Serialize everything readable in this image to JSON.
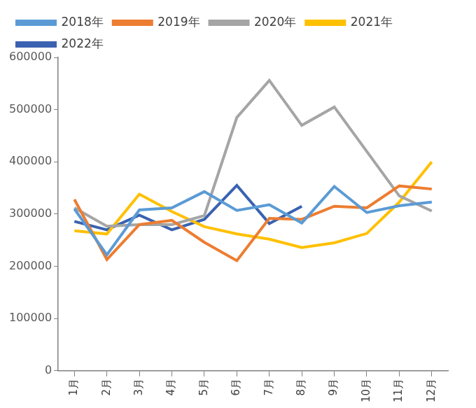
{
  "chart_data": {
    "type": "line",
    "categories": [
      "1月",
      "2月",
      "3月",
      "4月",
      "5月",
      "6月",
      "7月",
      "8月",
      "9月",
      "10月",
      "11月",
      "12月"
    ],
    "series": [
      {
        "name": "2018年",
        "color": "#5b9bd5",
        "values": [
          310000,
          222000,
          308000,
          312000,
          343000,
          307000,
          318000,
          283000,
          353000,
          303000,
          316000,
          323000
        ]
      },
      {
        "name": "2019年",
        "color": "#ed7d31",
        "values": [
          328000,
          213000,
          280000,
          288000,
          246000,
          211000,
          292000,
          290000,
          315000,
          312000,
          354000,
          348000
        ]
      },
      {
        "name": "2020年",
        "color": "#a5a5a5",
        "values": [
          312000,
          277000,
          280000,
          280000,
          297000,
          485000,
          556000,
          470000,
          505000,
          420000,
          335000,
          306000
        ]
      },
      {
        "name": "2021年",
        "color": "#ffc000",
        "values": [
          268000,
          262000,
          338000,
          305000,
          276000,
          262000,
          252000,
          236000,
          245000,
          263000,
          323000,
          400000
        ]
      },
      {
        "name": "2022年",
        "color": "#3a62b0",
        "values": [
          286000,
          270000,
          298000,
          270000,
          290000,
          355000,
          282000,
          315000,
          null,
          null,
          null,
          null
        ]
      }
    ],
    "ylim": [
      0,
      600000
    ],
    "yticks": [
      0,
      100000,
      200000,
      300000,
      400000,
      500000,
      600000
    ],
    "grid": false,
    "legend": "top"
  }
}
